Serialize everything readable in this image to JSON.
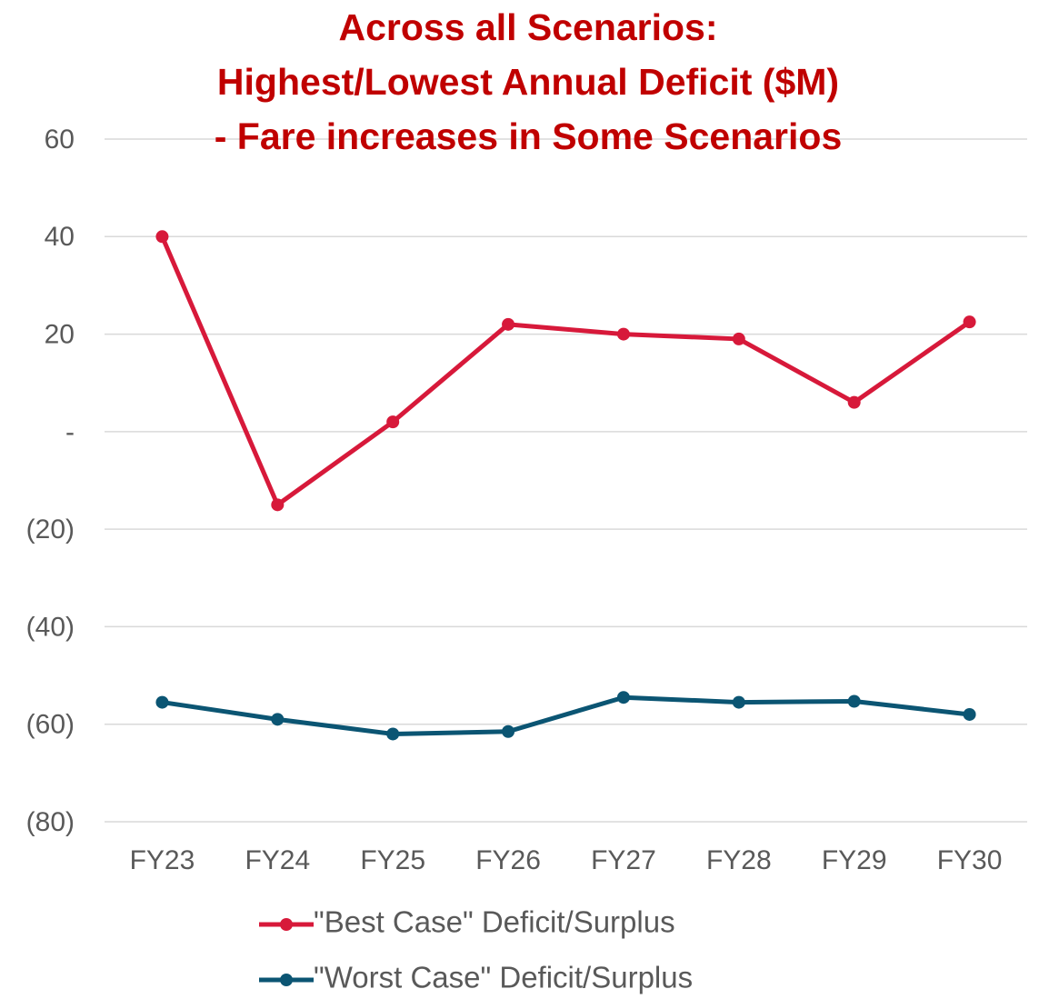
{
  "chart_data": {
    "type": "line",
    "title": [
      "Across all Scenarios:",
      "Highest/Lowest Annual Deficit ($M)",
      "- Fare increases in Some Scenarios"
    ],
    "categories": [
      "FY23",
      "FY24",
      "FY25",
      "FY26",
      "FY27",
      "FY28",
      "FY29",
      "FY30"
    ],
    "series": [
      {
        "name": "\"Best Case\" Deficit/Surplus",
        "color": "#d7193a",
        "values": [
          40,
          -15,
          2,
          22,
          20,
          19,
          6,
          22.5
        ]
      },
      {
        "name": "\"Worst Case\" Deficit/Surplus",
        "color": "#0b5573",
        "values": [
          -55.5,
          -59,
          -62,
          -61.5,
          -54.5,
          -55.5,
          -55.3,
          -58
        ]
      }
    ],
    "ylim": [
      -80,
      60
    ],
    "yticks": [
      {
        "value": -80,
        "label": "(80)"
      },
      {
        "value": -60,
        "label": "(60)"
      },
      {
        "value": -40,
        "label": "(40)"
      },
      {
        "value": -20,
        "label": "(20)"
      },
      {
        "value": 0,
        "label": "-"
      },
      20,
      40,
      60
    ],
    "grid": true,
    "legend": "bottom"
  }
}
